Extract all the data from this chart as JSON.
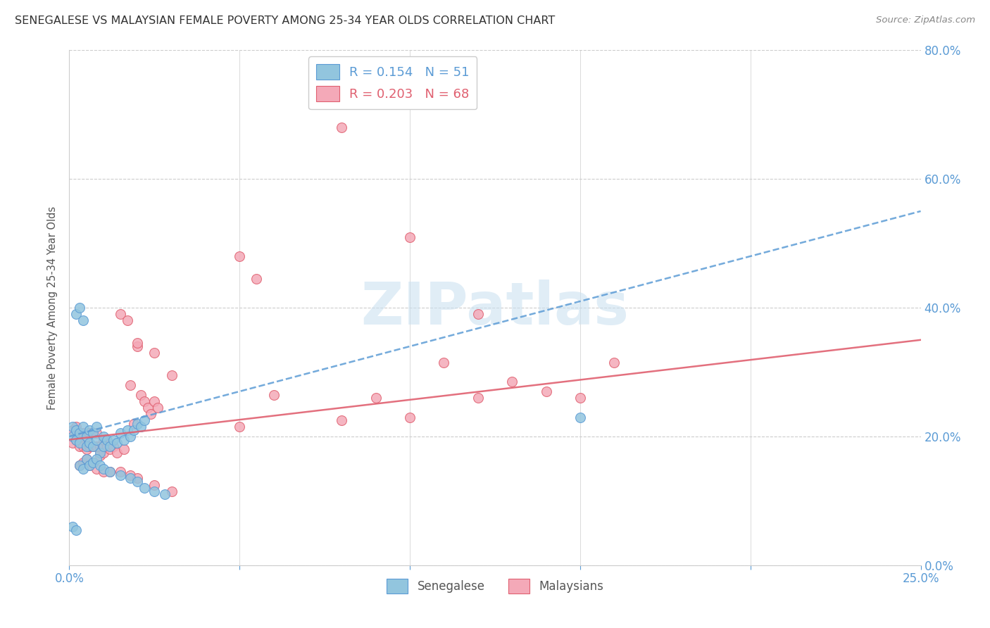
{
  "title": "SENEGALESE VS MALAYSIAN FEMALE POVERTY AMONG 25-34 YEAR OLDS CORRELATION CHART",
  "source": "Source: ZipAtlas.com",
  "ylabel": "Female Poverty Among 25-34 Year Olds",
  "xlim": [
    0.0,
    0.25
  ],
  "ylim": [
    0.0,
    0.8
  ],
  "background_color": "#ffffff",
  "grid_color": "#cccccc",
  "tick_color": "#5b9bd5",
  "watermark_color": "#c8dff0",
  "legend_r1": "R = 0.154",
  "legend_n1": "N = 51",
  "legend_r2": "R = 0.203",
  "legend_n2": "N = 68",
  "senegalese_color": "#92c5de",
  "senegalese_edge_color": "#5b9bd5",
  "malaysian_color": "#f4a9b8",
  "malaysian_edge_color": "#e06070",
  "sen_line_color": "#5b9bd5",
  "mal_line_color": "#e06070",
  "sen_x": [
    0.001,
    0.001,
    0.002,
    0.002,
    0.003,
    0.003,
    0.004,
    0.005,
    0.005,
    0.006,
    0.006,
    0.007,
    0.007,
    0.008,
    0.008,
    0.009,
    0.01,
    0.01,
    0.011,
    0.012,
    0.013,
    0.014,
    0.015,
    0.016,
    0.017,
    0.018,
    0.019,
    0.02,
    0.021,
    0.022,
    0.003,
    0.004,
    0.005,
    0.006,
    0.007,
    0.008,
    0.009,
    0.01,
    0.012,
    0.015,
    0.018,
    0.02,
    0.022,
    0.025,
    0.028,
    0.002,
    0.003,
    0.004,
    0.001,
    0.002,
    0.15
  ],
  "sen_y": [
    0.215,
    0.2,
    0.21,
    0.195,
    0.205,
    0.19,
    0.215,
    0.2,
    0.185,
    0.21,
    0.19,
    0.205,
    0.185,
    0.215,
    0.195,
    0.175,
    0.2,
    0.185,
    0.195,
    0.185,
    0.195,
    0.19,
    0.205,
    0.195,
    0.21,
    0.2,
    0.21,
    0.22,
    0.215,
    0.225,
    0.155,
    0.15,
    0.165,
    0.155,
    0.16,
    0.165,
    0.155,
    0.15,
    0.145,
    0.14,
    0.135,
    0.13,
    0.12,
    0.115,
    0.11,
    0.39,
    0.4,
    0.38,
    0.06,
    0.055,
    0.23
  ],
  "mal_x": [
    0.001,
    0.001,
    0.002,
    0.002,
    0.003,
    0.003,
    0.004,
    0.004,
    0.005,
    0.005,
    0.006,
    0.006,
    0.007,
    0.007,
    0.008,
    0.008,
    0.009,
    0.009,
    0.01,
    0.01,
    0.011,
    0.012,
    0.013,
    0.014,
    0.015,
    0.016,
    0.017,
    0.018,
    0.019,
    0.02,
    0.021,
    0.022,
    0.023,
    0.024,
    0.025,
    0.026,
    0.003,
    0.004,
    0.005,
    0.006,
    0.007,
    0.008,
    0.01,
    0.012,
    0.015,
    0.018,
    0.02,
    0.025,
    0.03,
    0.05,
    0.06,
    0.08,
    0.09,
    0.1,
    0.11,
    0.12,
    0.13,
    0.14,
    0.15,
    0.16,
    0.1,
    0.12,
    0.05,
    0.03,
    0.025,
    0.02,
    0.08,
    0.055
  ],
  "mal_y": [
    0.21,
    0.19,
    0.215,
    0.195,
    0.2,
    0.185,
    0.205,
    0.185,
    0.2,
    0.18,
    0.205,
    0.185,
    0.205,
    0.185,
    0.205,
    0.185,
    0.185,
    0.17,
    0.195,
    0.175,
    0.185,
    0.18,
    0.185,
    0.175,
    0.39,
    0.18,
    0.38,
    0.28,
    0.22,
    0.34,
    0.265,
    0.255,
    0.245,
    0.235,
    0.255,
    0.245,
    0.155,
    0.16,
    0.165,
    0.155,
    0.16,
    0.15,
    0.145,
    0.145,
    0.145,
    0.14,
    0.135,
    0.125,
    0.115,
    0.215,
    0.265,
    0.225,
    0.26,
    0.23,
    0.315,
    0.26,
    0.285,
    0.27,
    0.26,
    0.315,
    0.51,
    0.39,
    0.48,
    0.295,
    0.33,
    0.345,
    0.68,
    0.445
  ]
}
